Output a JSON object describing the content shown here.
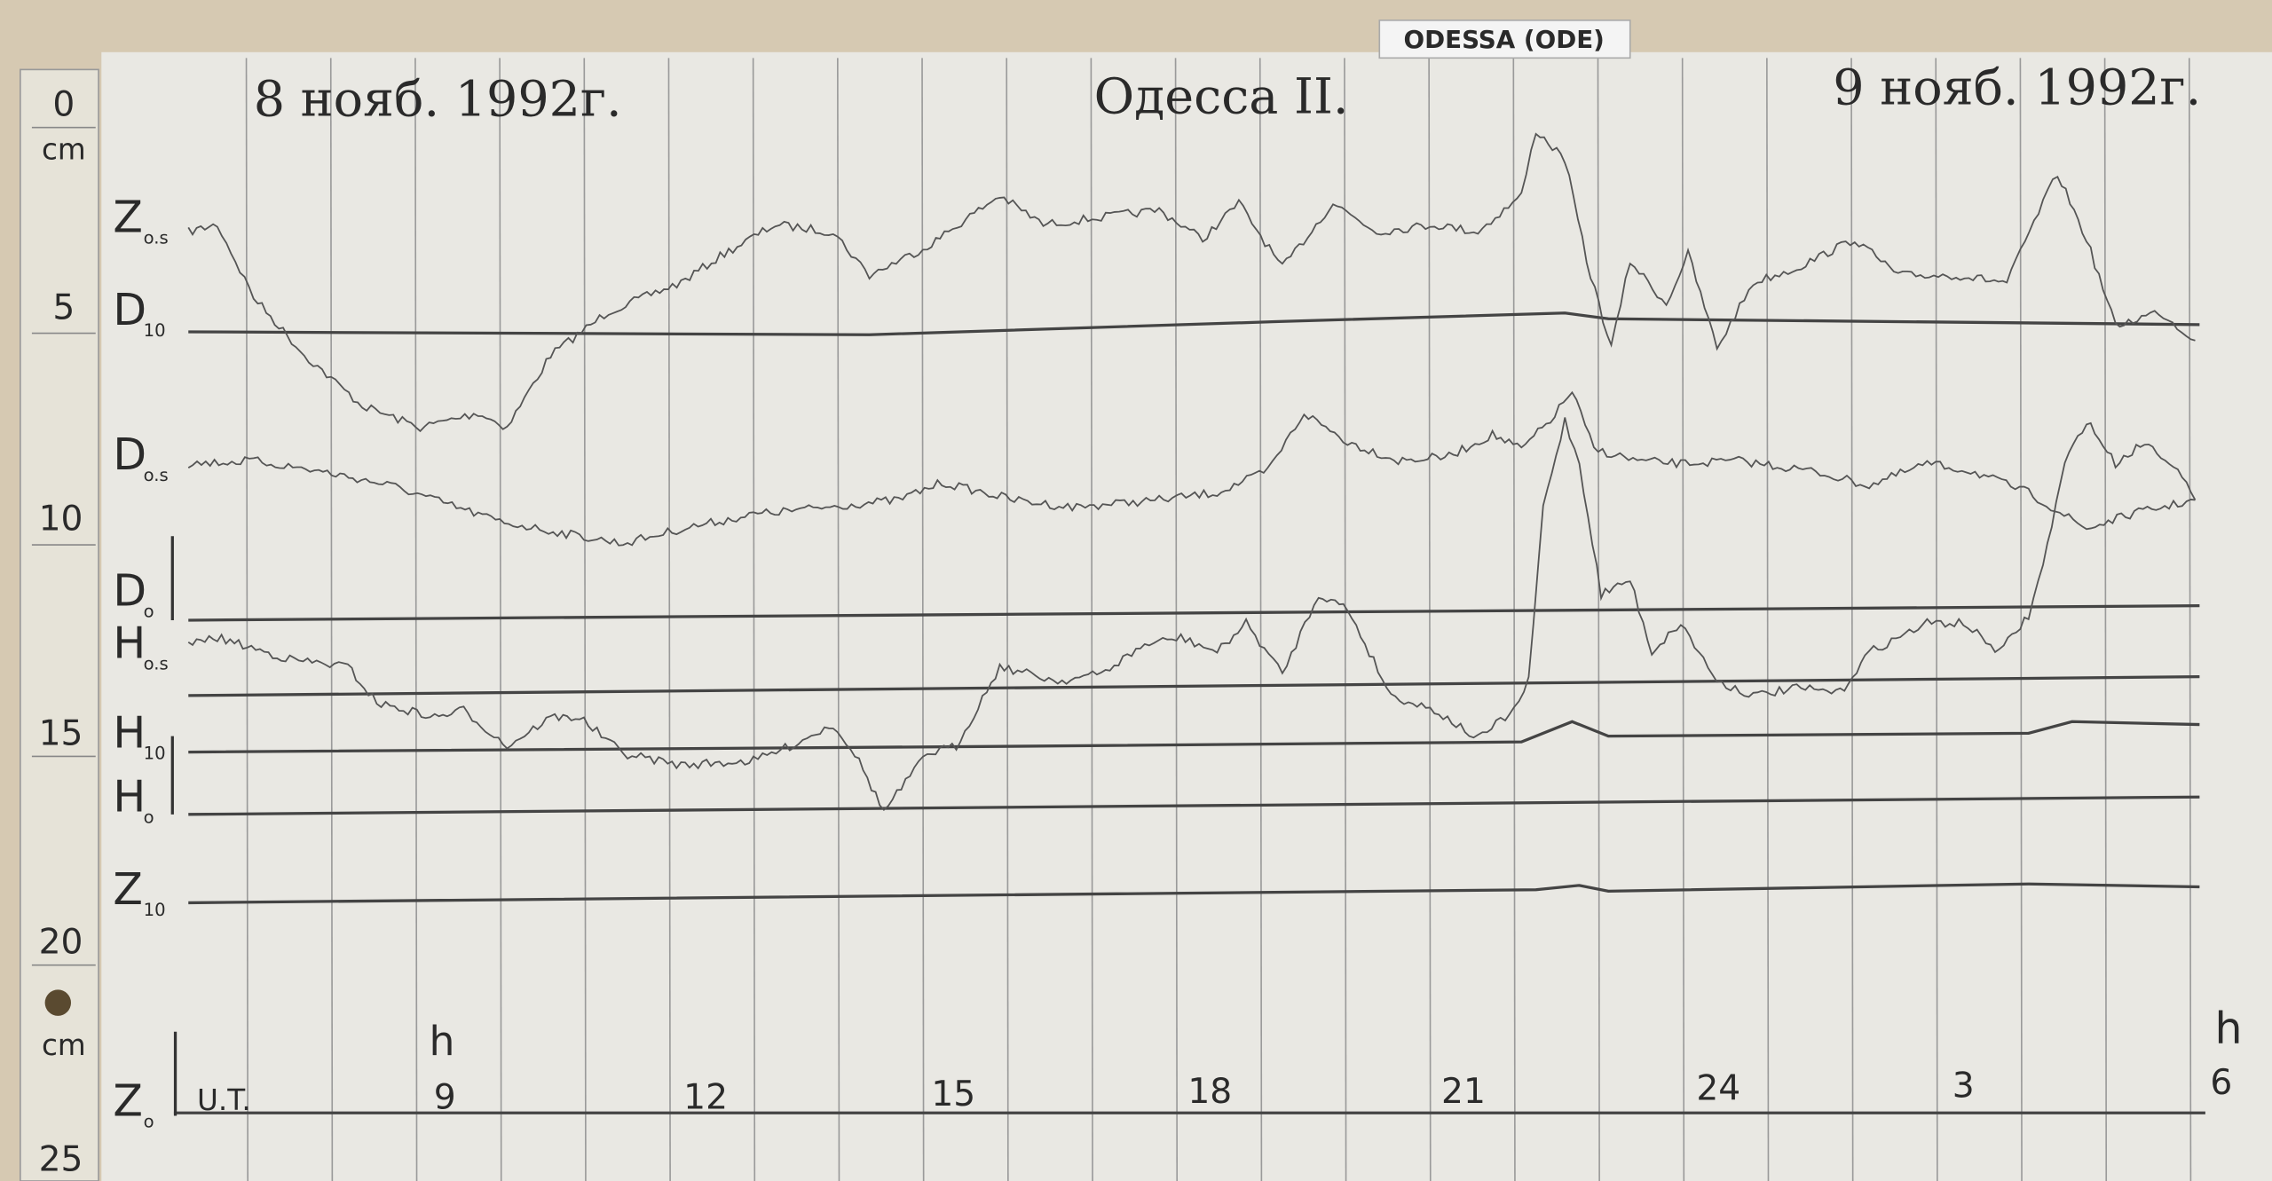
{
  "header": {
    "station": "ODESSA (ODE)",
    "date_left": "8 нояб. 1992г.",
    "title": "Одесса II.",
    "date_right": "9 нояб. 1992г."
  },
  "scale": {
    "labels": [
      "0",
      "cm",
      "5",
      "10",
      "15",
      "20",
      "cm",
      "25"
    ]
  },
  "traces": [
    {
      "symbol": "Z",
      "index": "o.s"
    },
    {
      "symbol": "D",
      "index": "10"
    },
    {
      "symbol": "D",
      "index": "o.s"
    },
    {
      "symbol": "D",
      "index": "o"
    },
    {
      "symbol": "H",
      "index": "o.s"
    },
    {
      "symbol": "H",
      "index": "10"
    },
    {
      "symbol": "H",
      "index": "o"
    },
    {
      "symbol": "Z",
      "index": "10"
    },
    {
      "symbol": "Z",
      "index": "o"
    }
  ],
  "time_axis": {
    "unit": "U.T.",
    "hour_mark": "h",
    "hours": [
      "9",
      "12",
      "15",
      "18",
      "21",
      "24",
      "3",
      "6"
    ],
    "end_mark": "h"
  }
}
